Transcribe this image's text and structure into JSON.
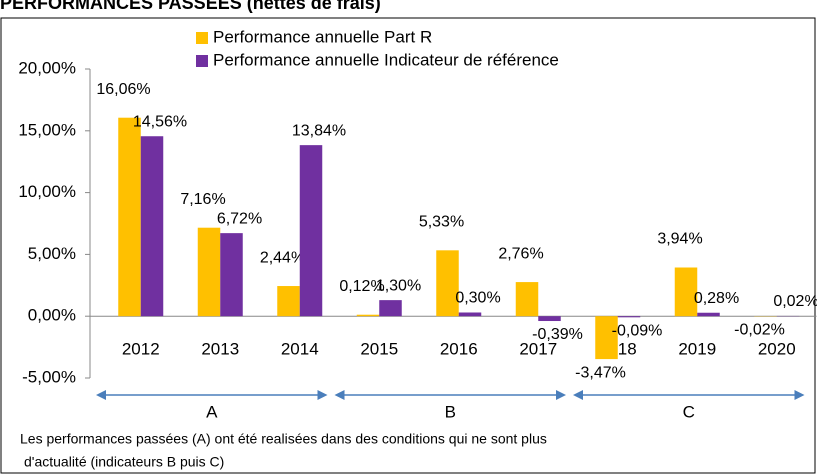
{
  "chart_data": {
    "type": "bar",
    "title": "PERFORMANCES PASSEES (nettes de frais)",
    "categories": [
      "2012",
      "2013",
      "2014",
      "2015",
      "2016",
      "2017",
      "2018",
      "2019",
      "2020"
    ],
    "series": [
      {
        "name": "Performance annuelle Part R",
        "color": "#FFC000",
        "values": [
          16.06,
          7.16,
          2.44,
          0.12,
          5.33,
          2.76,
          -3.47,
          3.94,
          -0.02
        ],
        "value_labels": [
          "16,06%",
          "7,16%",
          "2,44%",
          "0,12%",
          "5,33%",
          "2,76%",
          "-3,47%",
          "3,94%",
          "-0,02%"
        ]
      },
      {
        "name": "Performance annuelle Indicateur de référence",
        "color": "#7030A0",
        "values": [
          14.56,
          6.72,
          13.84,
          1.3,
          0.3,
          -0.39,
          -0.09,
          0.28,
          0.02
        ],
        "value_labels": [
          "14,56%",
          "6,72%",
          "13,84%",
          "1,30%",
          "0,30%",
          "-0,39%",
          "-0,09%",
          "0,28%",
          "0,02%"
        ]
      }
    ],
    "ylim": [
      -5,
      20
    ],
    "yticks": [
      {
        "value": -5,
        "label": "-5,00%"
      },
      {
        "value": 0,
        "label": "0,00%"
      },
      {
        "value": 5,
        "label": "5,00%"
      },
      {
        "value": 10,
        "label": "10,00%"
      },
      {
        "value": 15,
        "label": "15,00%"
      },
      {
        "value": 20,
        "label": "20,00%"
      }
    ],
    "grid": false,
    "legend": "top",
    "annotations": [
      "A",
      "B",
      "C"
    ],
    "footnote": [
      "Les performances passées (A) ont été realisées dans des conditions qui ne sont plus",
      "d'actualité (indicateurs B puis C)"
    ]
  }
}
